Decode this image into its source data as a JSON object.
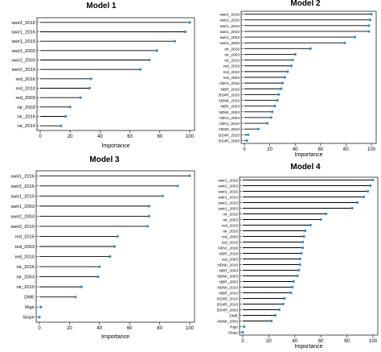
{
  "chart_data": [
    {
      "type": "dot",
      "title": "Model 1",
      "xlabel": "Importance",
      "xlim": [
        0,
        100
      ],
      "xticks": [
        "0",
        "20",
        "40",
        "60",
        "80",
        "100"
      ],
      "categories": [
        "swir2_2016",
        "swir1_2016",
        "swir1_2010",
        "swir1_2003",
        "swir2_2003",
        "swir2_2010",
        "red_2016",
        "red_2010",
        "red_2003",
        "nir_2003",
        "nir_2016",
        "nir_2010"
      ],
      "values": [
        100,
        97,
        90,
        78,
        73,
        67,
        34,
        33,
        27,
        20,
        17,
        14
      ]
    },
    {
      "type": "dot",
      "title": "Model 2",
      "xlabel": "Importance",
      "xlim": [
        0,
        100
      ],
      "xticks": [
        "0",
        "20",
        "40",
        "60",
        "80",
        "100"
      ],
      "categories": [
        "swir2_2016",
        "swir2_2010",
        "swir1_2016",
        "swir1_2010",
        "swir1_2003",
        "swir2_2003",
        "nir_2016",
        "nir_2003",
        "nir_2010",
        "red_2016",
        "red_2010",
        "red_2003",
        "NDVI_2016",
        "NBR_2016",
        "BS4R_2016",
        "NDMI_2016",
        "NBR_2003",
        "NDMI_2003",
        "NDVI_2003",
        "NDVI_2010",
        "NDMI_2010",
        "BS4R_2010",
        "BS4R_2003"
      ],
      "values": [
        100,
        99,
        98,
        98,
        87,
        79,
        52,
        40,
        38,
        37,
        34,
        32,
        30,
        29,
        27,
        26,
        24,
        22,
        21,
        18,
        11,
        3,
        2
      ]
    },
    {
      "type": "dot",
      "title": "Model 3",
      "xlabel": "Importance",
      "xlim": [
        0,
        100
      ],
      "xticks": [
        "0",
        "20",
        "40",
        "60",
        "80",
        "100"
      ],
      "categories": [
        "swir1_2016",
        "swir2_2016",
        "swir1_2010",
        "swir1_2003",
        "swir2_2003",
        "swir2_2010",
        "red_2016",
        "red_2003",
        "red_2010",
        "nir_2016",
        "nir_2003",
        "nir_2010",
        "DME",
        "Rigo",
        "Slope"
      ],
      "values": [
        100,
        92,
        82,
        73,
        73,
        72,
        52,
        50,
        47,
        40,
        39,
        28,
        24,
        1,
        0
      ]
    },
    {
      "type": "dot",
      "title": "Model 4",
      "xlabel": "Importance",
      "xlim": [
        0,
        100
      ],
      "xticks": [
        "0",
        "20",
        "40",
        "60",
        "80",
        "100"
      ],
      "categories": [
        "swir1_2016",
        "swir2_2003",
        "swir2_2016",
        "swir1_2010",
        "swir2_2010",
        "swir1_2003",
        "nir_2016",
        "nir_2003",
        "red_2016",
        "nir_2010",
        "red_2003",
        "red_2010",
        "NDVI_2016",
        "NBR_2016",
        "red_2003",
        "NDMI_2016",
        "NBR_2003",
        "NDMI_2003",
        "NBR_2003",
        "NDMI_2010",
        "NBR_2010",
        "BS4R_2010",
        "BS4R_2016",
        "BS4R_2003",
        "DME",
        "NDMI_2003",
        "Rigo",
        "Slope"
      ],
      "values": [
        100,
        98,
        96,
        93,
        88,
        84,
        64,
        60,
        52,
        48,
        47,
        46,
        46,
        45,
        44,
        44,
        43,
        42,
        39,
        38,
        37,
        32,
        31,
        28,
        25,
        22,
        1,
        0
      ]
    }
  ]
}
